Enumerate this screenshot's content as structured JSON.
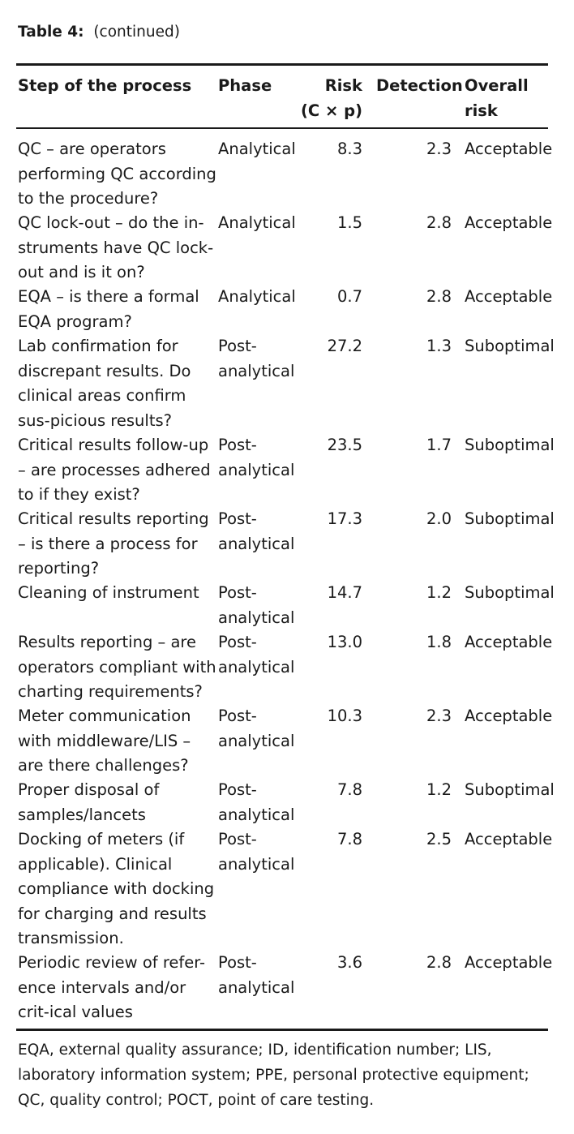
{
  "caption": {
    "label": "Table 4:",
    "text": "(continued)"
  },
  "headers": {
    "step": "Step of the process",
    "phase": "Phase",
    "risk_line1": "Risk",
    "risk_line2": "(C × p)",
    "detection": "Detection",
    "overall_line1": "Overall",
    "overall_line2": "risk"
  },
  "rows": [
    {
      "step": "QC – are operators performing QC according to the procedure?",
      "phase": "Analytical",
      "risk": "8.3",
      "detection": "2.3",
      "overall": "Acceptable"
    },
    {
      "step": "QC lock-out – do the in-struments have QC lock-out and is it on?",
      "phase": "Analytical",
      "risk": "1.5",
      "detection": "2.8",
      "overall": "Acceptable"
    },
    {
      "step": "EQA – is there a formal EQA program?",
      "phase": "Analytical",
      "risk": "0.7",
      "detection": "2.8",
      "overall": "Acceptable"
    },
    {
      "step": "Lab confirmation for discrepant results. Do clinical areas confirm sus-picious results?",
      "phase": "Post-analytical",
      "risk": "27.2",
      "detection": "1.3",
      "overall": "Suboptimal"
    },
    {
      "step": "Critical results follow-up – are processes adhered to if they exist?",
      "phase": "Post-analytical",
      "risk": "23.5",
      "detection": "1.7",
      "overall": "Suboptimal"
    },
    {
      "step": "Critical results reporting – is there a process for reporting?",
      "phase": "Post-analytical",
      "risk": "17.3",
      "detection": "2.0",
      "overall": "Suboptimal"
    },
    {
      "step": "Cleaning of instrument",
      "phase": "Post-analytical",
      "risk": "14.7",
      "detection": "1.2",
      "overall": "Suboptimal"
    },
    {
      "step": "Results reporting – are operators compliant with charting requirements?",
      "phase": "Post-analytical",
      "risk": "13.0",
      "detection": "1.8",
      "overall": "Acceptable"
    },
    {
      "step": "Meter communication with middleware/LIS – are there challenges?",
      "phase": "Post-analytical",
      "risk": "10.3",
      "detection": "2.3",
      "overall": "Acceptable"
    },
    {
      "step": "Proper disposal of samples/lancets",
      "phase": "Post-analytical",
      "risk": "7.8",
      "detection": "1.2",
      "overall": "Suboptimal"
    },
    {
      "step": "Docking of meters (if applicable). Clinical compliance with docking for charging and results transmission.",
      "phase": "Post-analytical",
      "risk": "7.8",
      "detection": "2.5",
      "overall": "Acceptable"
    },
    {
      "step": "Periodic review of refer-ence intervals and/or crit-ical values",
      "phase": "Post-analytical",
      "risk": "3.6",
      "detection": "2.8",
      "overall": "Acceptable"
    }
  ],
  "footnote": "EQA, external quality assurance; ID, identification number; LIS, laboratory information system; PPE, personal protective equipment; QC, quality control; POCT, point of care testing."
}
